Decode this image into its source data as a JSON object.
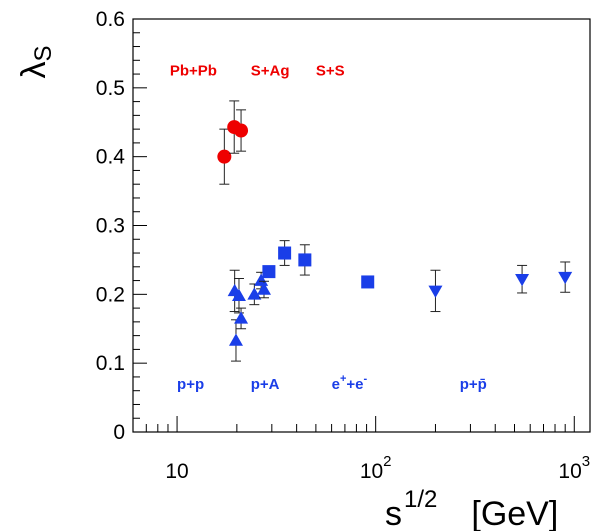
{
  "chart_data": {
    "type": "scatter",
    "x_scale": "log",
    "xlim": [
      6,
      1200
    ],
    "ylim": [
      0,
      0.6
    ],
    "y_ticks": [
      {
        "value": 0,
        "label": "0"
      },
      {
        "value": 0.1,
        "label": "0.1"
      },
      {
        "value": 0.2,
        "label": "0.2"
      },
      {
        "value": 0.3,
        "label": "0.3"
      },
      {
        "value": 0.4,
        "label": "0.4"
      },
      {
        "value": 0.5,
        "label": "0.5"
      },
      {
        "value": 0.6,
        "label": "0.6"
      }
    ],
    "x_ticks": [
      {
        "value": 10,
        "base": "10",
        "exp": ""
      },
      {
        "value": 100,
        "base": "10",
        "exp": "2"
      },
      {
        "value": 1000,
        "base": "10",
        "exp": "3"
      }
    ],
    "ylabel": {
      "main": "λ",
      "sub": "S"
    },
    "xlabel": {
      "main": "s",
      "sup": "1/2",
      "unit": "[GeV]"
    },
    "colors": {
      "nucleus": "#ee0000",
      "elementary": "#1a3ee8",
      "axis": "#000000"
    },
    "series": [
      {
        "group": "nucleus-nucleus",
        "marker": "circle",
        "color": "#ee0000",
        "points": [
          {
            "x": 17.3,
            "y": 0.4,
            "err": 0.04
          },
          {
            "x": 19.4,
            "y": 0.443,
            "err": 0.038
          },
          {
            "x": 21.0,
            "y": 0.438,
            "err": 0.03
          }
        ]
      },
      {
        "group": "p+p",
        "marker": "triangle-up",
        "color": "#1a3ee8",
        "points": [
          {
            "x": 19.5,
            "y": 0.205,
            "err": 0.03
          },
          {
            "x": 20.5,
            "y": 0.198,
            "err": 0.025
          },
          {
            "x": 19.8,
            "y": 0.133,
            "err": 0.03
          },
          {
            "x": 21.0,
            "y": 0.165,
            "err": 0.015
          },
          {
            "x": 24.5,
            "y": 0.2,
            "err": 0.015
          },
          {
            "x": 26.5,
            "y": 0.22,
            "err": 0.012
          },
          {
            "x": 27.4,
            "y": 0.207,
            "err": 0.012
          }
        ]
      },
      {
        "group": "e+e-",
        "marker": "square",
        "color": "#1a3ee8",
        "points": [
          {
            "x": 29.0,
            "y": 0.233,
            "err": 0.0
          },
          {
            "x": 34.8,
            "y": 0.26,
            "err": 0.018
          },
          {
            "x": 44.0,
            "y": 0.25,
            "err": 0.022
          },
          {
            "x": 91.2,
            "y": 0.218,
            "err": 0.0
          }
        ]
      },
      {
        "group": "p+pbar",
        "marker": "triangle-down",
        "color": "#1a3ee8",
        "points": [
          {
            "x": 200,
            "y": 0.205,
            "err": 0.03
          },
          {
            "x": 546,
            "y": 0.222,
            "err": 0.02
          },
          {
            "x": 900,
            "y": 0.225,
            "err": 0.022
          }
        ]
      }
    ],
    "annotations": [
      {
        "text": "Pb+Pb",
        "color": "#ee0000",
        "x": 9.2,
        "y": 0.525
      },
      {
        "text": "S+Ag",
        "color": "#ee0000",
        "x": 23.5,
        "y": 0.525
      },
      {
        "text": "S+S",
        "color": "#ee0000",
        "x": 50,
        "y": 0.525
      },
      {
        "text": "p+p",
        "color": "#1a3ee8",
        "x": 10,
        "y": 0.07
      },
      {
        "text": "p+A",
        "color": "#1a3ee8",
        "x": 23.5,
        "y": 0.07
      },
      {
        "text": "e",
        "sup": "+",
        "text2": "+e",
        "sup2": "-",
        "color": "#1a3ee8",
        "x": 60,
        "y": 0.07
      },
      {
        "text": "p+p̄",
        "color": "#1a3ee8",
        "x": 265,
        "y": 0.07
      }
    ]
  }
}
